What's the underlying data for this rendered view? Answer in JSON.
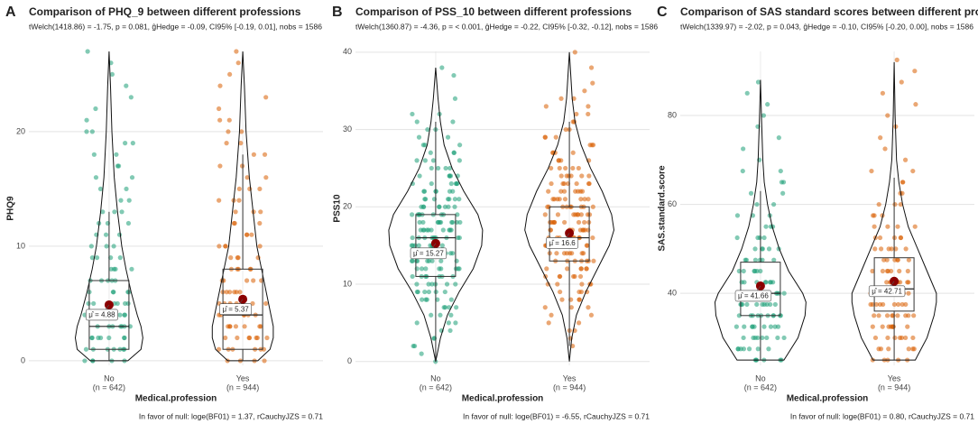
{
  "chart_data": [
    {
      "type": "violin",
      "panel": "A",
      "title": "Comparison of PHQ_9 between different professions",
      "subtitle": "tWelch(1418.86) = -1.75, p = 0.081, ĝHedge = -0.09, CI95% [-0.19, 0.01], nobs = 1586",
      "caption": "In favor of null: loge(BF01) = 1.37, rCauchyJZS = 0.71",
      "x_label": "Medical.profession",
      "y_label": "PHQ9",
      "categories": [
        "No",
        "Yes"
      ],
      "category_notes": [
        "(n = 642)",
        "(n = 944)"
      ],
      "colors": [
        "#1b9e77",
        "#d95f02"
      ],
      "ylim": [
        -0.4,
        27
      ],
      "yticks": [
        0,
        10,
        20
      ],
      "whisker_low": [
        0,
        0
      ],
      "q1": [
        1,
        1
      ],
      "median": [
        3,
        4
      ],
      "q3": [
        7,
        8
      ],
      "whisker_high": [
        13,
        18
      ],
      "means": [
        4.88,
        5.37
      ],
      "mean_labels": [
        "μ̂ = 4.88",
        "μ̂ = 5.37"
      ],
      "density_y": [
        [
          0,
          1,
          2,
          3,
          4,
          6,
          8,
          10,
          13,
          16,
          20,
          24,
          27
        ],
        [
          0,
          1,
          2,
          3,
          4,
          6,
          8,
          10,
          13,
          16,
          20,
          24,
          27
        ]
      ],
      "density": [
        [
          0.4,
          0.68,
          0.72,
          0.68,
          0.6,
          0.47,
          0.36,
          0.27,
          0.18,
          0.11,
          0.06,
          0.03,
          0
        ],
        [
          0.32,
          0.58,
          0.65,
          0.65,
          0.6,
          0.5,
          0.4,
          0.3,
          0.22,
          0.14,
          0.07,
          0.035,
          0
        ]
      ],
      "points": [
        [
          0,
          1,
          2,
          3,
          4,
          5,
          6,
          7,
          8,
          9,
          10,
          11,
          12,
          13,
          14,
          15,
          16,
          17,
          18,
          19,
          20,
          21,
          22,
          23,
          24,
          25,
          26,
          27
        ],
        [
          0,
          1,
          2,
          3,
          4,
          5,
          6,
          7,
          8,
          9,
          10,
          11,
          12,
          13,
          14,
          15,
          16,
          17,
          18,
          19,
          20,
          21,
          22,
          23,
          24,
          25,
          26,
          27
        ]
      ]
    },
    {
      "type": "violin",
      "panel": "B",
      "title": "Comparison of PSS_10 between different professions",
      "subtitle": "tWelch(1360.87) = -4.36, p = < 0.001, ĝHedge = -0.22, CI95% [-0.32, -0.12], nobs = 1586",
      "caption": "In favor of null: loge(BF01) = -6.55, rCauchyJZS = 0.71",
      "x_label": "Medical.profession",
      "y_label": "PSS10",
      "categories": [
        "No",
        "Yes"
      ],
      "category_notes": [
        "(n = 642)",
        "(n = 944)"
      ],
      "colors": [
        "#1b9e77",
        "#d95f02"
      ],
      "ylim": [
        -0.5,
        40.1
      ],
      "yticks": [
        0,
        10,
        20,
        30,
        40
      ],
      "whisker_low": [
        0,
        2
      ],
      "q1": [
        11,
        13
      ],
      "median": [
        16,
        16
      ],
      "q3": [
        19,
        20
      ],
      "whisker_high": [
        31,
        31
      ],
      "means": [
        15.27,
        16.6
      ],
      "mean_labels": [
        "μ̂ = 15.27",
        "μ̂ = 16.6"
      ],
      "density_y": [
        [
          0,
          3,
          6,
          9,
          12,
          15,
          17,
          19,
          22,
          25,
          28,
          31,
          34,
          38
        ],
        [
          0,
          3,
          6,
          9,
          12,
          15,
          17,
          19,
          22,
          25,
          28,
          31,
          34,
          37,
          40
        ]
      ],
      "density": [
        [
          0,
          0.1,
          0.25,
          0.5,
          0.8,
          0.98,
          1,
          0.9,
          0.6,
          0.35,
          0.18,
          0.1,
          0.05,
          0
        ],
        [
          0,
          0.05,
          0.15,
          0.35,
          0.6,
          0.85,
          0.95,
          0.9,
          0.7,
          0.45,
          0.25,
          0.12,
          0.06,
          0.03,
          0
        ]
      ],
      "points": [
        [
          0,
          1,
          2,
          3,
          4,
          5,
          6,
          7,
          8,
          9,
          10,
          11,
          12,
          13,
          14,
          15,
          16,
          17,
          18,
          19,
          20,
          21,
          22,
          23,
          24,
          25,
          26,
          27,
          28,
          29,
          30,
          31,
          32,
          34,
          37,
          38
        ],
        [
          2,
          3,
          4,
          5,
          6,
          7,
          8,
          9,
          10,
          11,
          12,
          13,
          14,
          15,
          16,
          17,
          18,
          19,
          20,
          21,
          22,
          23,
          24,
          25,
          26,
          27,
          28,
          29,
          30,
          31,
          32,
          33,
          34,
          35,
          36,
          38,
          40
        ]
      ]
    },
    {
      "type": "violin",
      "panel": "C",
      "title": "Comparison of SAS standard scores between different professions",
      "subtitle": "tWelch(1339.97) = -2.02, p = 0.043, ĝHedge = -0.10, CI95% [-0.20, 0.00], nobs = 1586",
      "caption": "In favor of null: loge(BF01) = 0.80, rCauchyJZS = 0.71",
      "x_label": "Medical.profession",
      "y_label": "SAS.standard.score",
      "categories": [
        "No",
        "Yes"
      ],
      "category_notes": [
        "(n = 642)",
        "(n = 944)"
      ],
      "colors": [
        "#1b9e77",
        "#d95f02"
      ],
      "ylim": [
        23.8,
        94.4
      ],
      "yticks": [
        40,
        60,
        80
      ],
      "whisker_low": [
        25,
        25
      ],
      "q1": [
        35,
        36
      ],
      "median": [
        40,
        41
      ],
      "q3": [
        47,
        48
      ],
      "whisker_high": [
        63,
        66
      ],
      "means": [
        41.66,
        42.71
      ],
      "mean_labels": [
        "μ̂ = 41.66",
        "μ̂ = 42.71"
      ],
      "density_y": [
        [
          25,
          30,
          35,
          38,
          40,
          45,
          50,
          55,
          60,
          65,
          70,
          80,
          88
        ],
        [
          25,
          30,
          35,
          38,
          40,
          45,
          50,
          55,
          60,
          65,
          70,
          80,
          92
        ]
      ],
      "density": [
        [
          0.5,
          0.8,
          0.95,
          0.97,
          0.9,
          0.6,
          0.4,
          0.25,
          0.15,
          0.08,
          0.05,
          0.02,
          0
        ],
        [
          0.45,
          0.7,
          0.85,
          0.9,
          0.9,
          0.7,
          0.5,
          0.3,
          0.18,
          0.1,
          0.05,
          0.02,
          0
        ]
      ],
      "points": [
        [
          25,
          27.5,
          30,
          32.5,
          35,
          37.5,
          40,
          42.5,
          45,
          47.5,
          50,
          52.5,
          55,
          57.5,
          60,
          62.5,
          65,
          67.5,
          70,
          72.5,
          75,
          77.5,
          80,
          82.5,
          85,
          87.5
        ],
        [
          25,
          27.5,
          30,
          32.5,
          35,
          37.5,
          40,
          42.5,
          45,
          47.5,
          50,
          52.5,
          55,
          57.5,
          60,
          62.5,
          65,
          67.5,
          70,
          72.5,
          75,
          77.5,
          80,
          82.5,
          85,
          87.5,
          90,
          92.5
        ]
      ]
    }
  ]
}
